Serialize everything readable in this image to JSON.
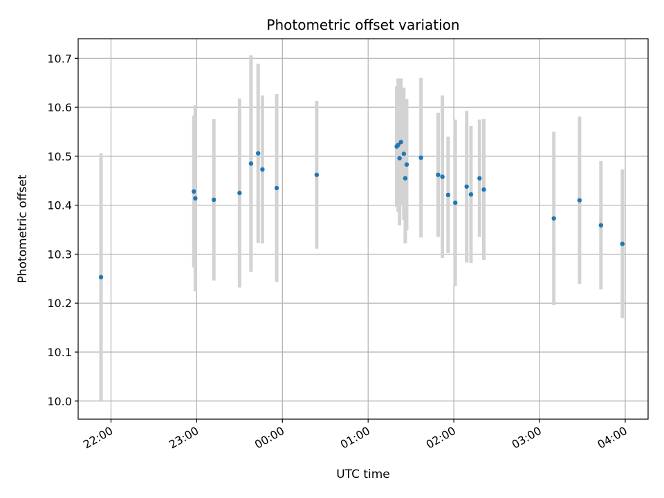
{
  "chart_data": {
    "type": "scatter",
    "title": "Photometric offset variation",
    "xlabel": "UTC time",
    "ylabel": "Photometric offset",
    "x_ticks": [
      "22:00",
      "23:00",
      "00:00",
      "01:00",
      "02:00",
      "03:00",
      "04:00"
    ],
    "y_ticks": [
      "10.0",
      "10.1",
      "10.2",
      "10.3",
      "10.4",
      "10.5",
      "10.6",
      "10.7"
    ],
    "xlim": [
      "21:37",
      "04:16"
    ],
    "ylim": [
      9.963,
      10.74
    ],
    "grid": true,
    "colors": {
      "points": "#1f77b4",
      "errorbars": "#d3d3d3",
      "grid": "#b0b0b0"
    },
    "points": [
      {
        "t": "21:53",
        "y": 10.253,
        "err": 0.253
      },
      {
        "t": "22:58",
        "y": 10.428,
        "err": 0.155
      },
      {
        "t": "22:59",
        "y": 10.414,
        "err": 0.19
      },
      {
        "t": "23:12",
        "y": 10.411,
        "err": 0.165
      },
      {
        "t": "23:30",
        "y": 10.425,
        "err": 0.193
      },
      {
        "t": "23:38",
        "y": 10.485,
        "err": 0.221
      },
      {
        "t": "23:43",
        "y": 10.506,
        "err": 0.183
      },
      {
        "t": "23:46",
        "y": 10.473,
        "err": 0.151
      },
      {
        "t": "23:56",
        "y": 10.435,
        "err": 0.192
      },
      {
        "t": "00:24",
        "y": 10.462,
        "err": 0.151
      },
      {
        "t": "01:20",
        "y": 10.52,
        "err": 0.123
      },
      {
        "t": "01:21",
        "y": 10.523,
        "err": 0.136
      },
      {
        "t": "01:22",
        "y": 10.496,
        "err": 0.137
      },
      {
        "t": "01:23",
        "y": 10.529,
        "err": 0.13
      },
      {
        "t": "01:25",
        "y": 10.505,
        "err": 0.135
      },
      {
        "t": "01:26",
        "y": 10.455,
        "err": 0.133
      },
      {
        "t": "01:27",
        "y": 10.483,
        "err": 0.134
      },
      {
        "t": "01:37",
        "y": 10.497,
        "err": 0.163
      },
      {
        "t": "01:49",
        "y": 10.462,
        "err": 0.127
      },
      {
        "t": "01:52",
        "y": 10.458,
        "err": 0.166
      },
      {
        "t": "01:56",
        "y": 10.421,
        "err": 0.119
      },
      {
        "t": "02:01",
        "y": 10.405,
        "err": 0.17
      },
      {
        "t": "02:09",
        "y": 10.438,
        "err": 0.155
      },
      {
        "t": "02:12",
        "y": 10.422,
        "err": 0.14
      },
      {
        "t": "02:18",
        "y": 10.455,
        "err": 0.12
      },
      {
        "t": "02:21",
        "y": 10.432,
        "err": 0.144
      },
      {
        "t": "03:10",
        "y": 10.373,
        "err": 0.177
      },
      {
        "t": "03:28",
        "y": 10.41,
        "err": 0.171
      },
      {
        "t": "03:43",
        "y": 10.359,
        "err": 0.131
      },
      {
        "t": "03:58",
        "y": 10.321,
        "err": 0.152
      }
    ]
  }
}
